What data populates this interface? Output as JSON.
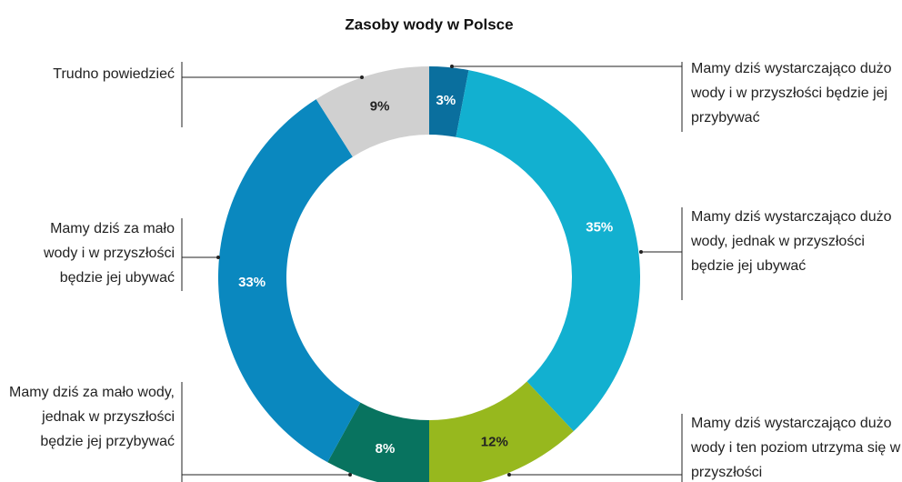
{
  "chart_data": {
    "type": "donut",
    "title": "Zasoby wody w Polsce",
    "categories": [
      "Mamy dziś wystarczająco dużo wody i w przyszłości będzie jej przybywać",
      "Mamy dziś wystarczająco dużo wody, jednak w przyszłości będzie jej ubywać",
      "Mamy dziś wystarczająco dużo wody i ten poziom utrzyma się w przyszłości",
      "Mamy dziś za mało wody, jednak w przyszłości będzie jej przybywać",
      "Mamy dziś za mało wody i w przyszłości będzie jej ubywać",
      "Trudno powiedzieć"
    ],
    "values": [
      3,
      35,
      12,
      8,
      33,
      9
    ],
    "value_labels": [
      "3%",
      "35%",
      "12%",
      "8%",
      "33%",
      "9%"
    ],
    "colors": [
      "#0a6f9e",
      "#12b0d0",
      "#97b81e",
      "#08735f",
      "#0a88bf",
      "#d0d0d0"
    ]
  }
}
